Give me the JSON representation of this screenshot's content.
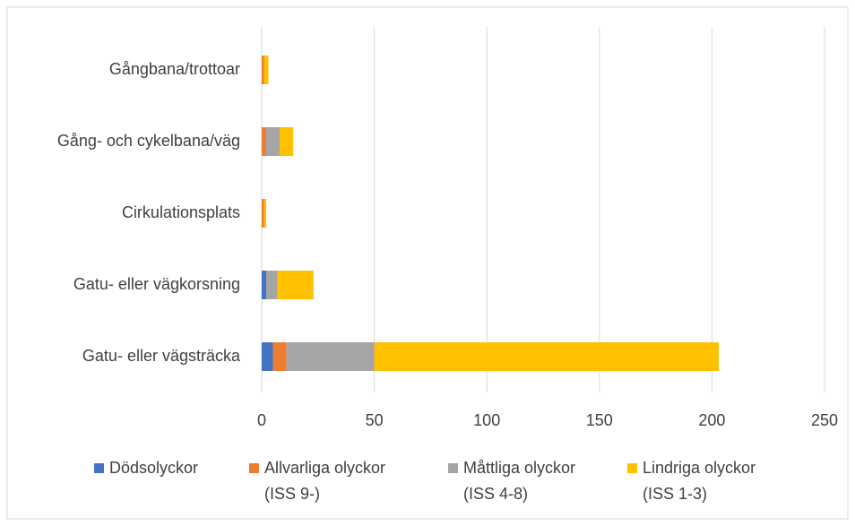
{
  "chart_data": {
    "type": "stacked_barh",
    "categories": [
      "Gångbana/trottoar",
      "Gång- och cykelbana/väg",
      "Cirkulationsplats",
      "Gatu- eller vägkorsning",
      "Gatu- eller vägsträcka"
    ],
    "series": [
      {
        "name": "Dödsolyckor",
        "color": "#4472c4",
        "values": [
          0,
          0,
          0,
          2,
          5
        ]
      },
      {
        "name": "Allvarliga olyckor\n(ISS 9-)",
        "color": "#ed7d31",
        "values": [
          1,
          2,
          1,
          0,
          6
        ]
      },
      {
        "name": "Måttliga olyckor\n(ISS 4-8)",
        "color": "#a5a5a5",
        "values": [
          0,
          6,
          0,
          5,
          39
        ]
      },
      {
        "name": "Lindriga olyckor\n(ISS 1-3)",
        "color": "#ffc000",
        "values": [
          2,
          6,
          1,
          16,
          153
        ]
      }
    ],
    "xlim": [
      0,
      250
    ],
    "xticks": [
      0,
      50,
      100,
      150,
      200,
      250
    ],
    "grid": true,
    "legend": "bottom"
  }
}
